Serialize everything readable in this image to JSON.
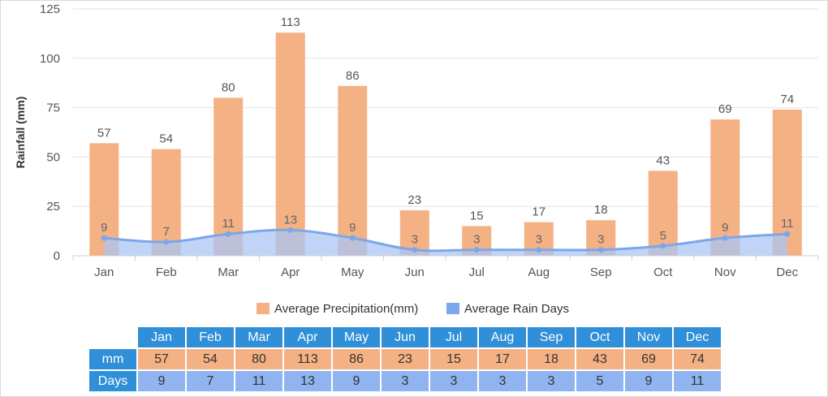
{
  "chart_data": {
    "type": "bar",
    "categories": [
      "Jan",
      "Feb",
      "Mar",
      "Apr",
      "May",
      "Jun",
      "Jul",
      "Aug",
      "Sep",
      "Oct",
      "Nov",
      "Dec"
    ],
    "series": [
      {
        "name": "Average Precipitation(mm)",
        "type": "bar",
        "color": "#f4b183",
        "values": [
          57,
          54,
          80,
          113,
          86,
          23,
          15,
          17,
          18,
          43,
          69,
          74
        ]
      },
      {
        "name": "Average Rain Days",
        "type": "area",
        "color": "#7ba7ec",
        "values": [
          9,
          7,
          11,
          13,
          9,
          3,
          3,
          3,
          3,
          5,
          9,
          11
        ]
      }
    ],
    "ylabel": "Rainfall (mm)",
    "ylim": [
      0,
      125
    ],
    "yticks": [
      0,
      25,
      50,
      75,
      100,
      125
    ],
    "grid": true,
    "legend": "bottom-center"
  },
  "table": {
    "mm_label": "mm",
    "days_label": "Days"
  },
  "colors": {
    "bar": "#f4b183",
    "area_fill": "#a9c6f4",
    "area_line": "#7ba7ec",
    "header": "#2f8fd8",
    "days_cell": "#8fb4f0"
  }
}
